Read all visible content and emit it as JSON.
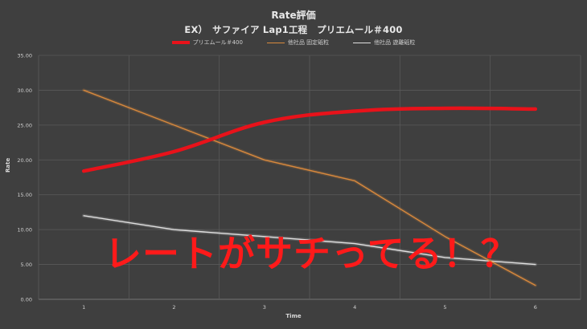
{
  "chart_data": {
    "type": "line",
    "title": "Rate評価",
    "subtitle": "EX）　サファイア Lap1工程　プリエムール＃400",
    "xlabel": "Time",
    "ylabel": "Rate",
    "categories": [
      "1",
      "2",
      "3",
      "4",
      "5",
      "6"
    ],
    "ylim": [
      0,
      35
    ],
    "yticks": [
      "0.00",
      "5.00",
      "10.00",
      "15.00",
      "20.00",
      "25.00",
      "30.00",
      "35.00"
    ],
    "grid": true,
    "legend_position": "top",
    "series": [
      {
        "name": "プリエムール＃400",
        "color": "#e8121a",
        "values": [
          18.4,
          21.2,
          25.4,
          27.0,
          27.4,
          27.3
        ]
      },
      {
        "name": "他社品 固定砥粒",
        "color": "#d9893d",
        "values": [
          30.0,
          25.0,
          20.0,
          17.0,
          9.0,
          2.0
        ]
      },
      {
        "name": "他社品 遊離砥粒",
        "color": "#e0e0e0",
        "values": [
          12.0,
          10.0,
          9.0,
          8.0,
          6.0,
          5.0
        ]
      }
    ]
  },
  "overlay_text": "レートがサチってる！？"
}
